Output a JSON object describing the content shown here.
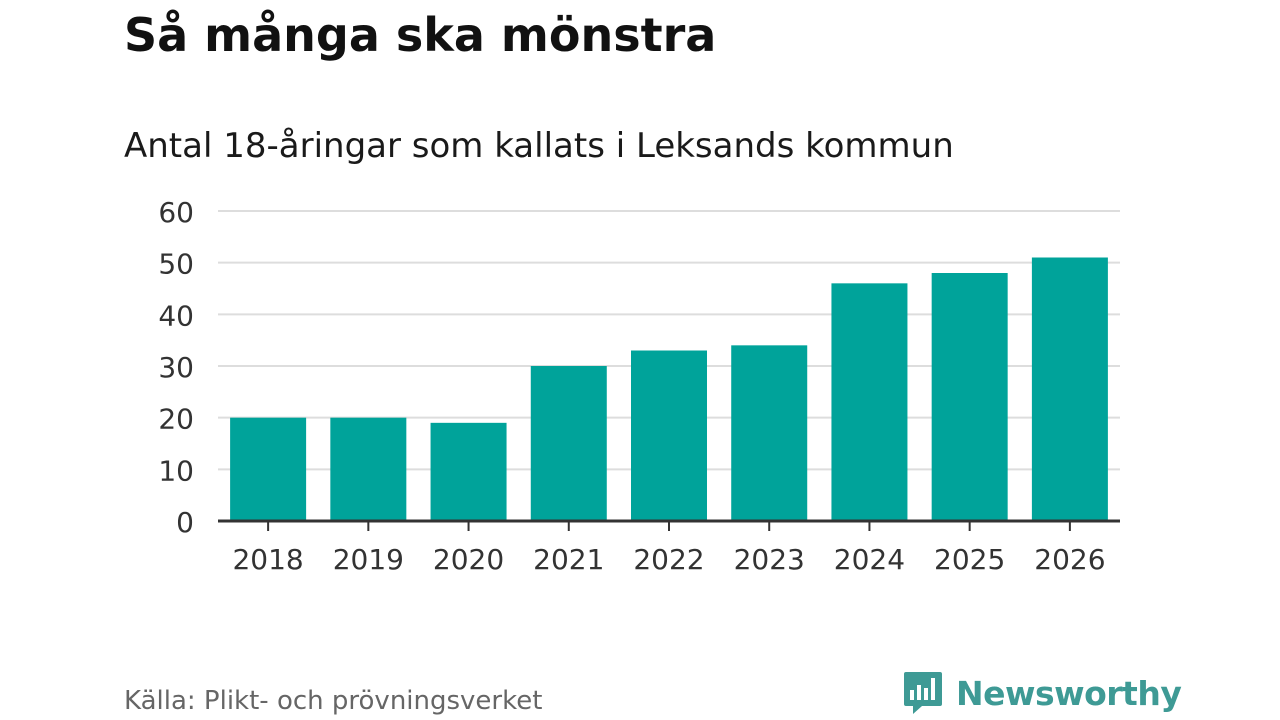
{
  "header": {
    "title": "Så många ska mönstra",
    "subtitle": "Antal 18-åringar som kallats i Leksands kommun"
  },
  "footer": {
    "source": "Källa: Plikt- och prövningsverket",
    "brand": "Newsworthy"
  },
  "colors": {
    "bar": "#00a39a",
    "grid": "#dddddd",
    "axis": "#333333",
    "tick_text": "#333333",
    "brand": "#3e9a95"
  },
  "chart_data": {
    "type": "bar",
    "title": "Så många ska mönstra",
    "subtitle": "Antal 18-åringar som kallats i Leksands kommun",
    "xlabel": "",
    "ylabel": "",
    "categories": [
      "2018",
      "2019",
      "2020",
      "2021",
      "2022",
      "2023",
      "2024",
      "2025",
      "2026"
    ],
    "values": [
      20,
      20,
      19,
      30,
      33,
      34,
      46,
      48,
      51
    ],
    "ylim": [
      0,
      60
    ],
    "yticks": [
      0,
      10,
      20,
      30,
      40,
      50,
      60
    ],
    "grid": true,
    "legend": "none"
  }
}
